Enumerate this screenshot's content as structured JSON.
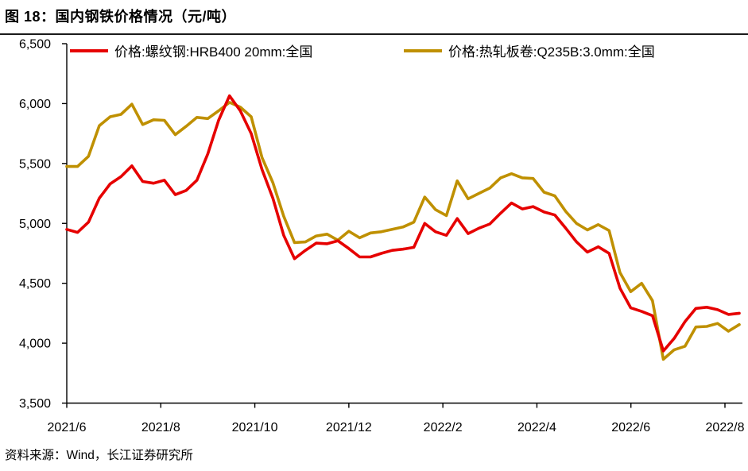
{
  "header": {
    "title": "图 18：国内钢铁价格情况（元/吨）"
  },
  "footer": {
    "source": "资料来源：Wind，长江证券研究所"
  },
  "chart_data": {
    "type": "line",
    "title": "图 18：国内钢铁价格情况（元/吨）",
    "xlabel": "",
    "ylabel": "元/吨",
    "ylim": [
      3500,
      6500
    ],
    "y_ticks": [
      3500,
      4000,
      4500,
      5000,
      5500,
      6000,
      6500
    ],
    "y_tick_labels": [
      "3,500",
      "4,000",
      "4,500",
      "5,000",
      "5,500",
      "6,000",
      "6,500"
    ],
    "x_tick_labels": [
      "2021/6",
      "2021/8",
      "2021/10",
      "2021/12",
      "2022/2",
      "2022/4",
      "2022/6",
      "2022/8"
    ],
    "x_range": "2021/6 to 2022/8, weekly samples",
    "grid": false,
    "legend_position": "top",
    "axis_color": "#000000",
    "series": [
      {
        "name": "价格:螺纹钢:HRB400 20mm:全国",
        "slug": "rebar",
        "color": "#e60000",
        "values": [
          4950,
          4925,
          5010,
          5210,
          5330,
          5390,
          5480,
          5350,
          5335,
          5360,
          5240,
          5275,
          5360,
          5580,
          5860,
          6065,
          5940,
          5750,
          5450,
          5210,
          4900,
          4705,
          4775,
          4835,
          4830,
          4855,
          4790,
          4720,
          4720,
          4750,
          4775,
          4785,
          4800,
          5000,
          4930,
          4900,
          5040,
          4915,
          4960,
          4995,
          5085,
          5170,
          5120,
          5140,
          5095,
          5070,
          4960,
          4845,
          4760,
          4805,
          4750,
          4460,
          4295,
          4265,
          4230,
          3935,
          4040,
          4180,
          4290,
          4300,
          4280,
          4240,
          4250
        ]
      },
      {
        "name": "价格:热轧板卷:Q235B:3.0mm:全国",
        "slug": "hrc",
        "color": "#bf9000",
        "values": [
          5475,
          5475,
          5560,
          5815,
          5890,
          5910,
          5995,
          5825,
          5865,
          5860,
          5740,
          5810,
          5885,
          5875,
          5940,
          6010,
          5970,
          5890,
          5550,
          5340,
          5060,
          4840,
          4845,
          4895,
          4910,
          4860,
          4935,
          4880,
          4920,
          4930,
          4950,
          4970,
          5010,
          5220,
          5115,
          5065,
          5355,
          5205,
          5250,
          5295,
          5380,
          5415,
          5380,
          5375,
          5260,
          5230,
          5100,
          5000,
          4945,
          4990,
          4940,
          4590,
          4430,
          4500,
          4355,
          3865,
          3945,
          3975,
          4135,
          4140,
          4165,
          4100,
          4155
        ]
      }
    ]
  }
}
